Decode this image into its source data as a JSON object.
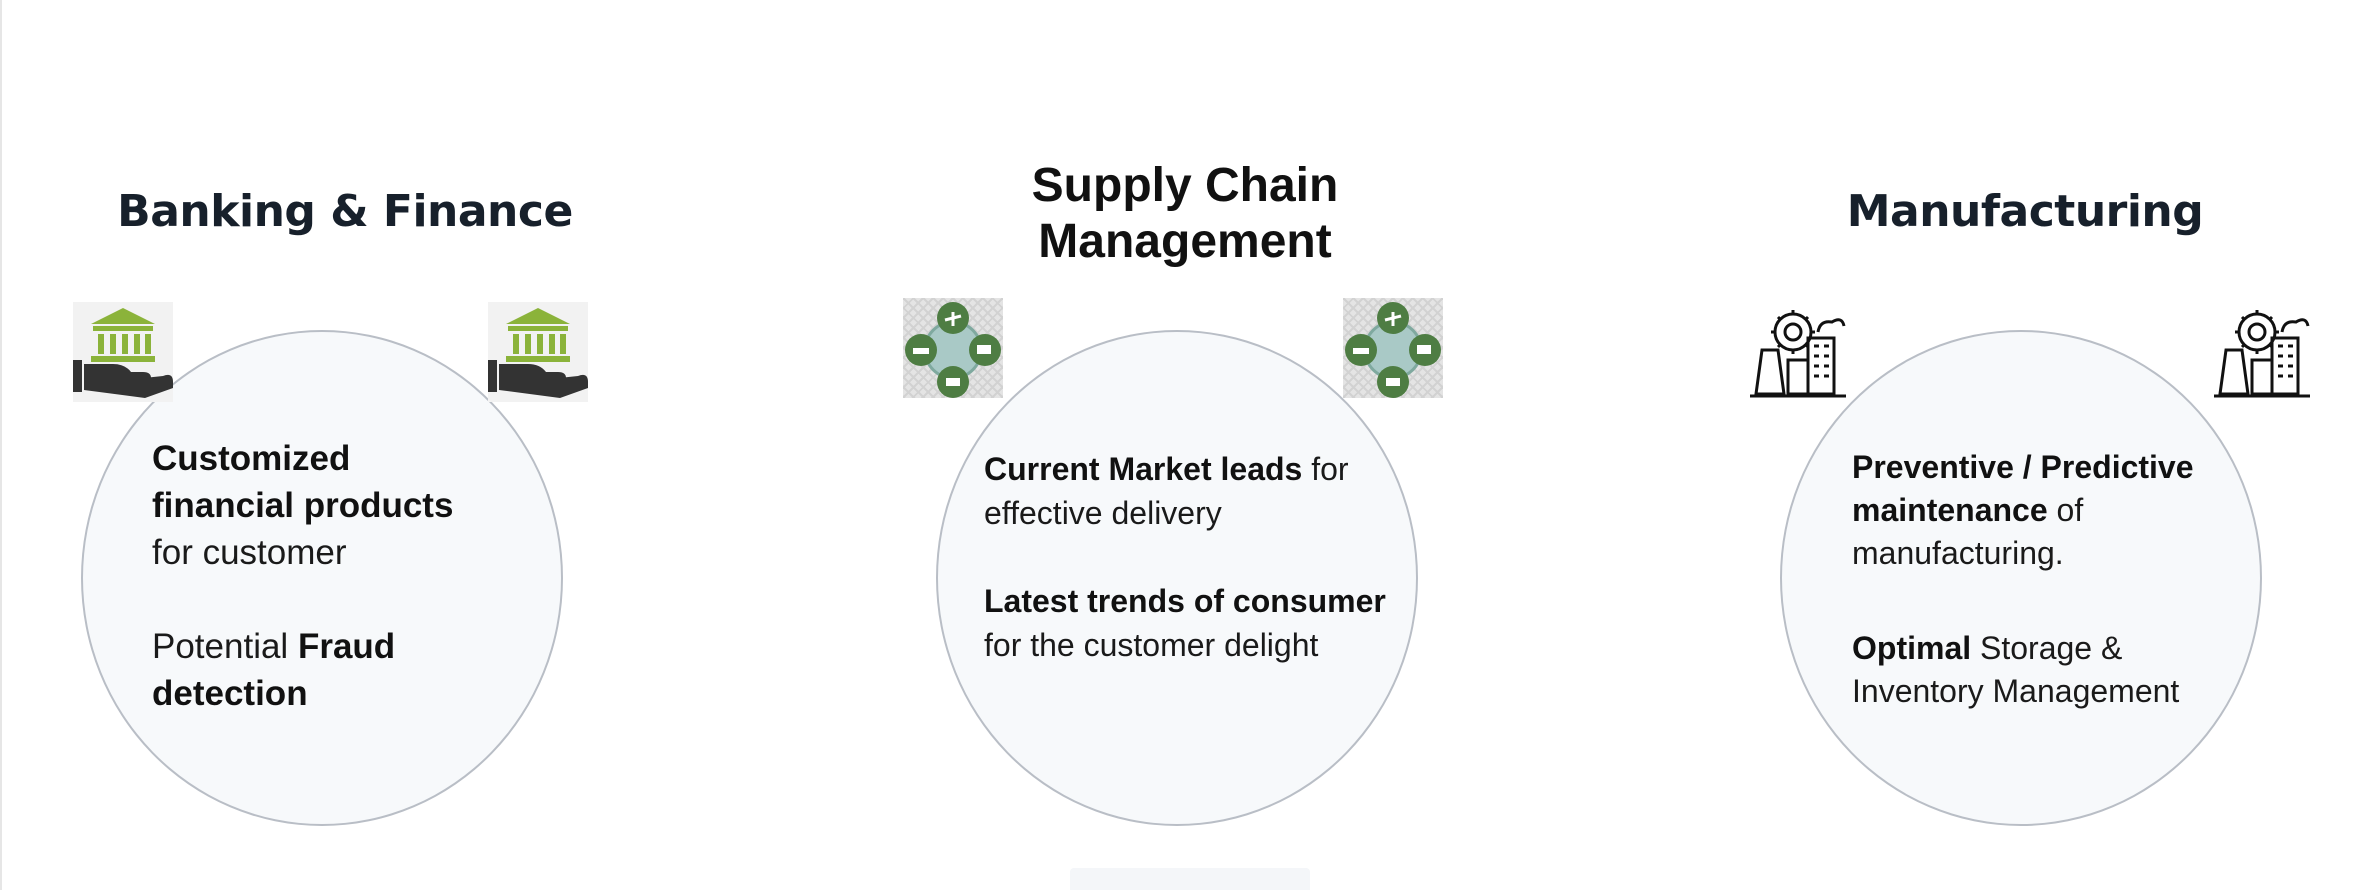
{
  "sections": [
    {
      "title": "Banking & Finance",
      "icon": "bank-hand-icon",
      "paragraphs": [
        [
          {
            "t": "Customized financial products",
            "b": true
          },
          {
            "t": " for customer",
            "b": false
          }
        ],
        [
          {
            "t": "Potential ",
            "b": false
          },
          {
            "t": "Fraud detection",
            "b": true
          }
        ]
      ]
    },
    {
      "title": "Supply Chain Management",
      "icon": "logistics-globe-icon",
      "paragraphs": [
        [
          {
            "t": "Current Market leads",
            "b": true
          },
          {
            "t": " for effective delivery",
            "b": false
          }
        ],
        [
          {
            "t": "Latest trends of consumer",
            "b": true
          },
          {
            "t": " for the customer delight",
            "b": false
          }
        ]
      ]
    },
    {
      "title": "Manufacturing",
      "icon": "factory-gear-icon",
      "paragraphs": [
        [
          {
            "t": "Preventive / Predictive maintenance",
            "b": true
          },
          {
            "t": " of manufacturing.",
            "b": false
          }
        ],
        [
          {
            "t": "Optimal",
            "b": true
          },
          {
            "t": " Storage & Inventory Management",
            "b": false
          }
        ]
      ]
    }
  ],
  "colors": {
    "icon_green": "#8bb33a",
    "icon_dark": "#333333",
    "logistics_green": "#4e7d43",
    "circle_border": "#b9bec6"
  }
}
